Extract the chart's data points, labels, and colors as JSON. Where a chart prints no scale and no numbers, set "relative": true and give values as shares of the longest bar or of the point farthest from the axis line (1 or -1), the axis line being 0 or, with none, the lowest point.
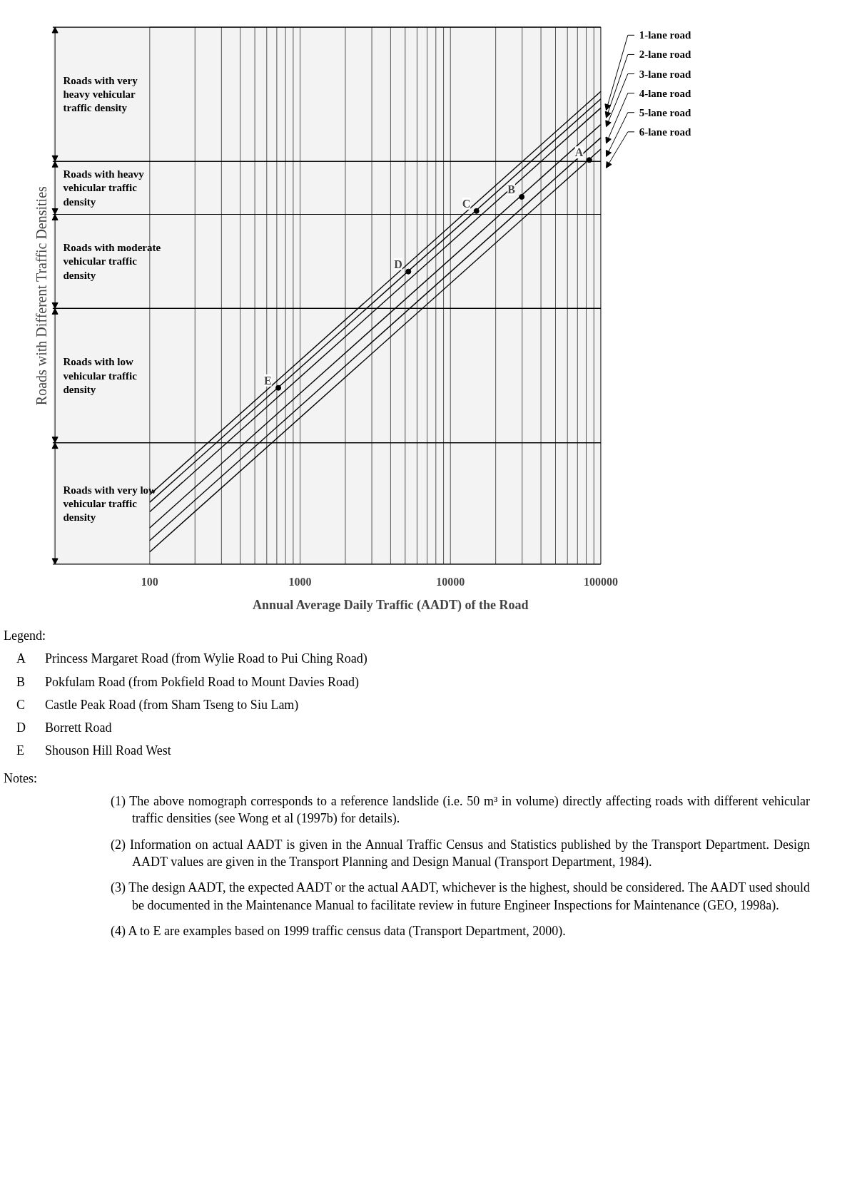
{
  "chart_data": {
    "type": "line",
    "xlabel": "Annual Average Daily Traffic (AADT) of the Road",
    "log": "x",
    "xlim": [
      100,
      100000
    ],
    "xticks": [
      100,
      1000,
      10000,
      100000
    ],
    "relative": true,
    "grid": "x",
    "line_style": "solid",
    "legend": "top right",
    "series": [
      {
        "name": "1-lane road",
        "color": "#000000",
        "x": [
          100,
          100000
        ],
        "values": [
          0.147,
          1.0
        ]
      },
      {
        "name": "2-lane road",
        "color": "#000000",
        "x": [
          100,
          100000
        ],
        "values": [
          0.131,
          0.984
        ]
      },
      {
        "name": "3-lane road",
        "color": "#000000",
        "x": [
          100,
          100000
        ],
        "values": [
          0.111,
          0.965
        ]
      },
      {
        "name": "4-lane road",
        "color": "#000000",
        "x": [
          100,
          100000
        ],
        "values": [
          0.077,
          0.93
        ]
      },
      {
        "name": "5-lane road",
        "color": "#000000",
        "x": [
          100,
          100000
        ],
        "values": [
          0.05,
          0.902
        ]
      },
      {
        "name": "6-lane road",
        "color": "#000000",
        "x": [
          100,
          100000
        ],
        "values": [
          0.026,
          0.878
        ]
      },
      {
        "type": "scatter",
        "color": "#000000",
        "x": [
          83900,
          29800,
          14900,
          5250,
          717
        ],
        "values": [
          0.855,
          0.777,
          0.747,
          0.619,
          0.373
        ]
      }
    ],
    "bands": [
      {
        "axis": "y",
        "from": 0.852,
        "to": 1.136,
        "label": "Roads with very heavy vehicular traffic density",
        "color": "#f3f3f3"
      },
      {
        "axis": "y",
        "from": 0.74,
        "to": 0.852,
        "label": "Roads with heavy vehicular traffic density",
        "color": "#f3f3f3"
      },
      {
        "axis": "y",
        "from": 0.541,
        "to": 0.74,
        "label": "Roads with moderate vehicular traffic density",
        "color": "#f3f3f3"
      },
      {
        "axis": "y",
        "from": 0.257,
        "to": 0.541,
        "label": "Roads with low vehicular traffic density",
        "color": "#f3f3f3"
      },
      {
        "axis": "y",
        "from": 0.0,
        "to": 0.257,
        "label": "Roads with very low vehicular traffic density",
        "color": "#f3f3f3"
      }
    ],
    "annotations": [
      "Roads with Different Traffic Densities",
      {
        "text": "A",
        "x": 83900,
        "y": 0.855
      },
      {
        "text": "B",
        "x": 29800,
        "y": 0.777
      },
      {
        "text": "C",
        "x": 14900,
        "y": 0.747
      },
      {
        "text": "D",
        "x": 5250,
        "y": 0.619
      },
      {
        "text": "E",
        "x": 717,
        "y": 0.373
      },
      "Legend:",
      "A Princess Margaret Road (from Wylie Road to Pui Ching Road)",
      "B Pokfulam Road (from Pokfield Road to Mount Davies Road)",
      "C Castle Peak Road (from Sham Tseng to Siu Lam)",
      "D Borrett Road",
      "E Shouson Hill Road West",
      "Notes:",
      "(1) The above nomograph corresponds to a reference landslide (i.e. 50 m³ in volume) directly affecting roads with different vehicular traffic densities (see Wong et al (1997b) for details).",
      "(2) Information on actual AADT is given in the Annual Traffic Census and Statistics published by the Transport Department.  Design AADT values are given in the Transport Planning and Design Manual (Transport Department, 1984).",
      "(3) The design AADT, the expected AADT or the actual AADT, whichever is the highest, should be considered.  The AADT used should be documented in the Maintenance Manual to facilitate review in future Engineer Inspections for Maintenance (GEO, 1998a).",
      "(4) A to E are examples based on 1999 traffic census data (Transport Department, 2000)."
    ]
  }
}
